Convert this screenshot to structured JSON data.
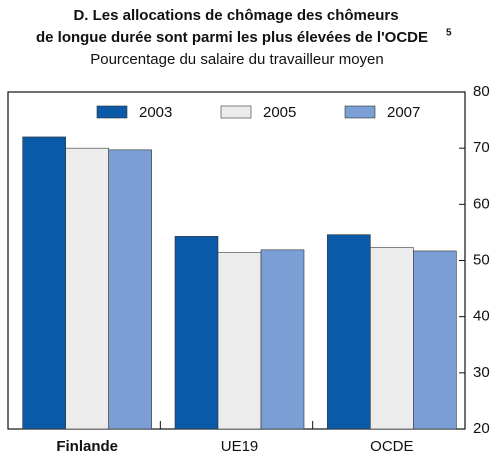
{
  "chart_data": {
    "type": "bar",
    "title": [
      "D. Les allocations de chômage des chômeurs",
      "de longue durée sont parmi les plus élevées de l'OCDE"
    ],
    "title_note": "5",
    "subtitle": "Pourcentage du salaire du travailleur moyen",
    "categories": [
      "Finlande",
      "UE19",
      "OCDE"
    ],
    "series": [
      {
        "name": "2003",
        "color": "#0b5aa8",
        "values": [
          72,
          54.3,
          54.6
        ]
      },
      {
        "name": "2005",
        "color": "#ececec",
        "values": [
          70,
          51.4,
          52.3
        ]
      },
      {
        "name": "2007",
        "color": "#7b9fd4",
        "values": [
          69.7,
          51.9,
          51.7
        ]
      }
    ],
    "ylim": [
      20,
      80
    ],
    "yticks": [
      20,
      30,
      40,
      50,
      60,
      70,
      80
    ],
    "y_axis_side": "right",
    "legend": "top"
  }
}
